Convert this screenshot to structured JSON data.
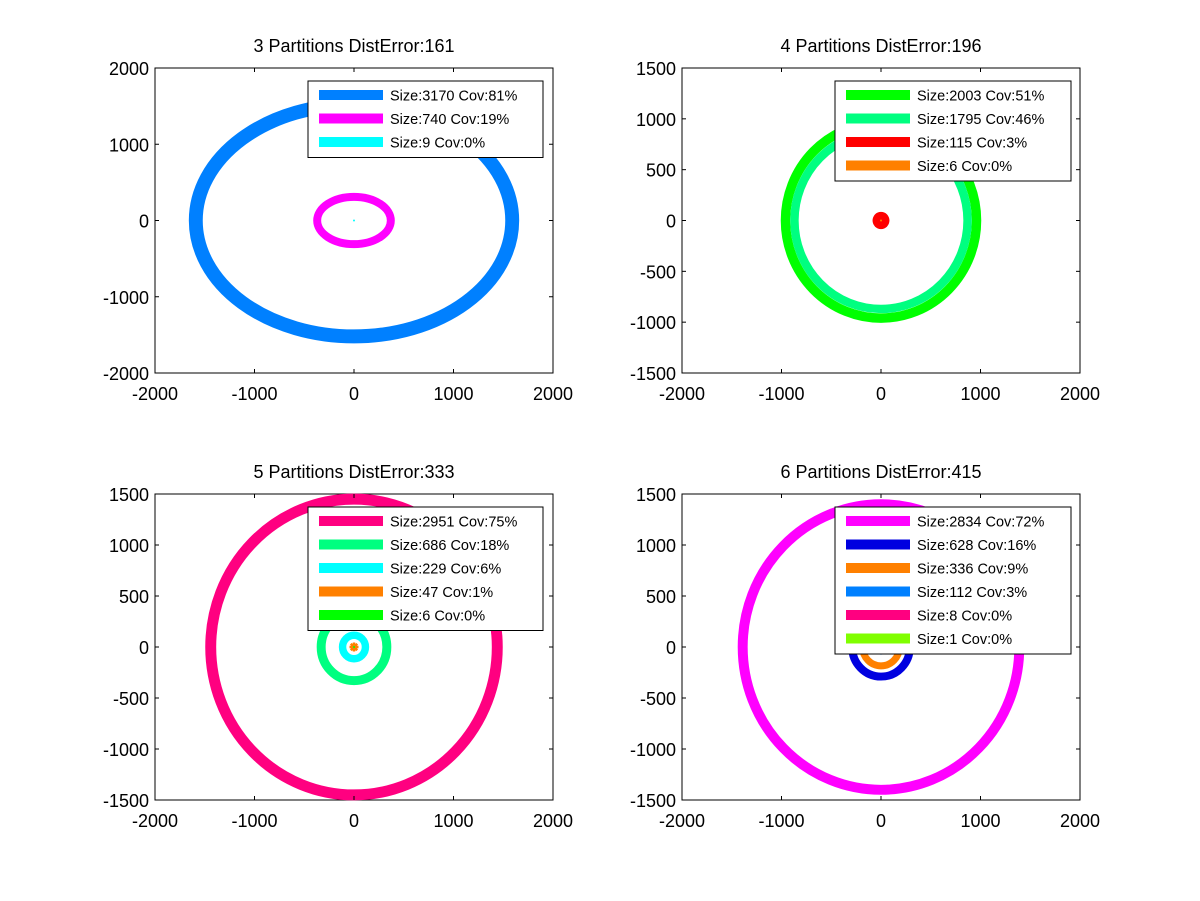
{
  "chart_data": [
    {
      "type": "scatter",
      "title": "3 Partitions DistError:161",
      "xlim": [
        -2000,
        2000
      ],
      "ylim": [
        -2000,
        2000
      ],
      "xticks": [
        "-2000",
        "-1000",
        "0",
        "1000",
        "2000"
      ],
      "yticks": [
        "-2000",
        "-1000",
        "0",
        "1000",
        "2000"
      ],
      "grid": false,
      "legend_position": "top-right",
      "series": [
        {
          "name": "Size:3170 Cov:81%",
          "color": "#0080ff",
          "shape": "ring",
          "center": [
            0,
            0
          ],
          "rx": 1590,
          "ry": 1520,
          "thickness": 140
        },
        {
          "name": "Size:740 Cov:19%",
          "color": "#ff00ff",
          "shape": "ring",
          "center": [
            0,
            0
          ],
          "rx": 370,
          "ry": 310,
          "thickness": 80
        },
        {
          "name": "Size:9 Cov:0%",
          "color": "#00ffff",
          "shape": "point",
          "center": [
            0,
            0
          ],
          "rx": 8,
          "ry": 8,
          "thickness": 0
        }
      ]
    },
    {
      "type": "scatter",
      "title": "4 Partitions DistError:196",
      "xlim": [
        -2000,
        2000
      ],
      "ylim": [
        -1500,
        1500
      ],
      "xticks": [
        "-2000",
        "-1000",
        "0",
        "1000",
        "2000"
      ],
      "yticks": [
        "-1500",
        "-1000",
        "-500",
        "0",
        "500",
        "1000",
        "1500"
      ],
      "grid": false,
      "legend_position": "top-right",
      "series": [
        {
          "name": "Size:2003 Cov:51%",
          "color": "#00ff00",
          "shape": "ring",
          "center": [
            0,
            0
          ],
          "rx": 960,
          "ry": 960,
          "thickness": 95
        },
        {
          "name": "Size:1795 Cov:46%",
          "color": "#00ff80",
          "shape": "ring",
          "center": [
            0,
            0
          ],
          "rx": 870,
          "ry": 870,
          "thickness": 85
        },
        {
          "name": "Size:115 Cov:3%",
          "color": "#ff0000",
          "shape": "disk",
          "center": [
            0,
            0
          ],
          "rx": 85,
          "ry": 85,
          "thickness": 0
        },
        {
          "name": "Size:6 Cov:0%",
          "color": "#ff8000",
          "shape": "point",
          "center": [
            0,
            0
          ],
          "rx": 6,
          "ry": 6,
          "thickness": 0
        }
      ]
    },
    {
      "type": "scatter",
      "title": "5 Partitions DistError:333",
      "xlim": [
        -2000,
        2000
      ],
      "ylim": [
        -1500,
        1500
      ],
      "xticks": [
        "-2000",
        "-1000",
        "0",
        "1000",
        "2000"
      ],
      "yticks": [
        "-1500",
        "-1000",
        "-500",
        "0",
        "500",
        "1000",
        "1500"
      ],
      "grid": false,
      "legend_position": "top-right",
      "series": [
        {
          "name": "Size:2951 Cov:75%",
          "color": "#ff0080",
          "shape": "ring",
          "center": [
            0,
            0
          ],
          "rx": 1440,
          "ry": 1450,
          "thickness": 110
        },
        {
          "name": "Size:686 Cov:18%",
          "color": "#00ff80",
          "shape": "ring",
          "center": [
            0,
            0
          ],
          "rx": 330,
          "ry": 330,
          "thickness": 90
        },
        {
          "name": "Size:229 Cov:6%",
          "color": "#00ffff",
          "shape": "ring",
          "center": [
            0,
            0
          ],
          "rx": 115,
          "ry": 115,
          "thickness": 75
        },
        {
          "name": "Size:47 Cov:1%",
          "color": "#ff8000",
          "shape": "star",
          "center": [
            0,
            0
          ],
          "rx": 45,
          "ry": 45,
          "thickness": 0
        },
        {
          "name": "Size:6 Cov:0%",
          "color": "#00ff00",
          "shape": "point",
          "center": [
            0,
            0
          ],
          "rx": 6,
          "ry": 6,
          "thickness": 0
        }
      ]
    },
    {
      "type": "scatter",
      "title": "6 Partitions DistError:415",
      "xlim": [
        -2000,
        2000
      ],
      "ylim": [
        -1500,
        1500
      ],
      "xticks": [
        "-2000",
        "-1000",
        "0",
        "1000",
        "2000"
      ],
      "yticks": [
        "-1500",
        "-1000",
        "-500",
        "0",
        "500",
        "1000",
        "1500"
      ],
      "grid": false,
      "legend_position": "top-right",
      "series": [
        {
          "name": "Size:2834 Cov:72%",
          "color": "#ff00ff",
          "shape": "ring",
          "center": [
            0,
            0
          ],
          "rx": 1390,
          "ry": 1400,
          "thickness": 100
        },
        {
          "name": "Size:628 Cov:16%",
          "color": "#0000e0",
          "shape": "ring",
          "center": [
            0,
            0
          ],
          "rx": 290,
          "ry": 290,
          "thickness": 80
        },
        {
          "name": "Size:336 Cov:9%",
          "color": "#ff8000",
          "shape": "ring",
          "center": [
            0,
            0
          ],
          "rx": 185,
          "ry": 185,
          "thickness": 70
        },
        {
          "name": "Size:112 Cov:3%",
          "color": "#0080ff",
          "shape": "disk",
          "center": [
            0,
            0
          ],
          "rx": 75,
          "ry": 75,
          "thickness": 0
        },
        {
          "name": "Size:8 Cov:0%",
          "color": "#ff0080",
          "shape": "point",
          "center": [
            0,
            0
          ],
          "rx": 6,
          "ry": 6,
          "thickness": 0
        },
        {
          "name": "Size:1 Cov:0%",
          "color": "#80ff00",
          "shape": "point",
          "center": [
            0,
            0
          ],
          "rx": 3,
          "ry": 3,
          "thickness": 0
        }
      ]
    }
  ]
}
